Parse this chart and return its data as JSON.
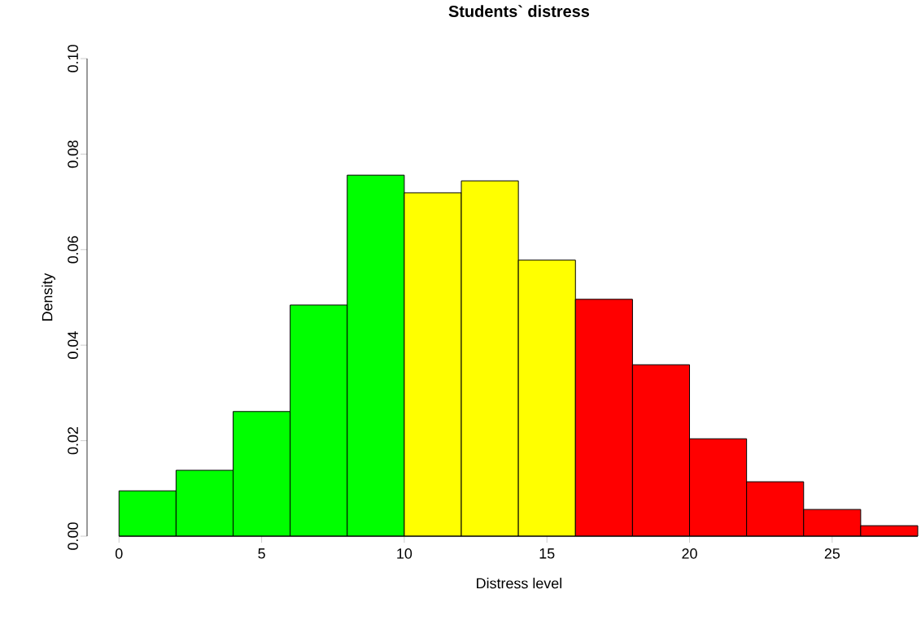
{
  "chart_data": {
    "type": "histogram",
    "title": "Students` distress",
    "xlabel": "Distress level",
    "ylabel": "Density",
    "bins": [
      0,
      2,
      4,
      6,
      8,
      10,
      12,
      14,
      16,
      18,
      20,
      22,
      24,
      26,
      28
    ],
    "values": [
      0.0095,
      0.0138,
      0.0261,
      0.0484,
      0.0756,
      0.0719,
      0.0744,
      0.0578,
      0.0496,
      0.0359,
      0.0204,
      0.0114,
      0.0056,
      0.0022
    ],
    "colors": [
      "#00ff00",
      "#00ff00",
      "#00ff00",
      "#00ff00",
      "#00ff00",
      "#ffff00",
      "#ffff00",
      "#ffff00",
      "#ff0000",
      "#ff0000",
      "#ff0000",
      "#ff0000",
      "#ff0000",
      "#ff0000"
    ],
    "xlim": [
      0,
      28
    ],
    "ylim": [
      0,
      0.1
    ],
    "xticks": [
      0,
      5,
      10,
      15,
      20,
      25
    ],
    "yticks": [
      {
        "value": 0,
        "label": "0.00"
      },
      {
        "value": 0.02,
        "label": "0.02"
      },
      {
        "value": 0.04,
        "label": "0.04"
      },
      {
        "value": 0.06,
        "label": "0.06"
      },
      {
        "value": 0.08,
        "label": "0.08"
      },
      {
        "value": 0.1,
        "label": "0.10"
      }
    ]
  }
}
